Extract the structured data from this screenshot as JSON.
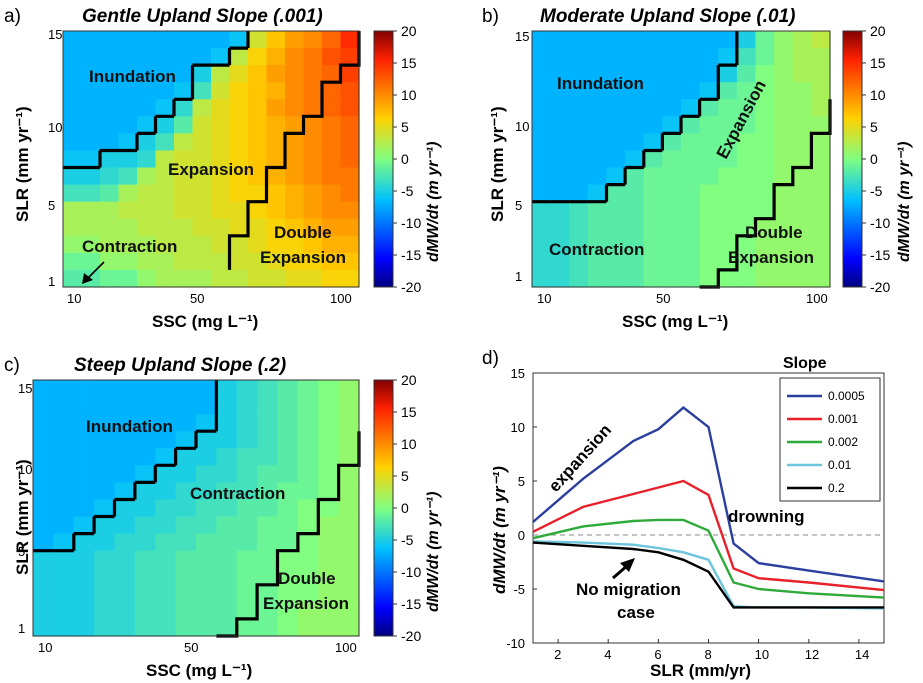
{
  "chart_data": [
    {
      "type": "heatmap",
      "panel_label": "a)",
      "title": "Gentle Upland Slope (.001)",
      "xlabel": "SSC (mg L⁻¹)",
      "ylabel": "SLR (mm yr⁻¹)",
      "xticks": [
        "10",
        "50",
        "100"
      ],
      "yticks": [
        "1",
        "5",
        "10",
        "15"
      ],
      "colorbar": {
        "label": "dMW/dt (m yr⁻¹)",
        "range": [
          -20,
          20
        ],
        "ticks": [
          "20",
          "15",
          "10",
          "5",
          "0",
          "-5",
          "-10",
          "-15",
          "-20"
        ]
      },
      "regions": [
        "Inundation",
        "Expansion",
        "Contraction",
        "Double Expansion"
      ],
      "values": [
        [
          -7,
          -7,
          -7,
          -7,
          -7,
          -7,
          -7,
          -7,
          -7,
          -6,
          4,
          7,
          9,
          10,
          12,
          15
        ],
        [
          -7,
          -7,
          -7,
          -7,
          -7,
          -7,
          -7,
          -7,
          -6,
          3,
          6,
          8,
          10,
          11,
          13,
          14
        ],
        [
          -7,
          -7,
          -7,
          -7,
          -7,
          -7,
          -7,
          -5,
          3,
          5,
          7,
          9,
          10,
          11,
          12,
          14
        ],
        [
          -7,
          -7,
          -7,
          -7,
          -7,
          -7,
          -6,
          -3,
          4,
          6,
          7,
          8,
          10,
          11,
          12,
          13
        ],
        [
          -7,
          -7,
          -7,
          -7,
          -7,
          -6,
          -4,
          3,
          5,
          6,
          7,
          9,
          10,
          11,
          12,
          13
        ],
        [
          -7,
          -7,
          -7,
          -7,
          -6,
          -5,
          -2,
          4,
          5,
          6,
          7,
          8,
          9,
          10,
          11,
          12
        ],
        [
          -7,
          -7,
          -7,
          -6,
          -5,
          -3,
          3,
          4,
          5,
          6,
          7,
          8,
          9,
          10,
          11,
          12
        ],
        [
          -6,
          -6,
          -5,
          -5,
          -4,
          3,
          4,
          4,
          5,
          6,
          7,
          8,
          9,
          10,
          11,
          12
        ],
        [
          -5,
          -5,
          -4,
          -3,
          2,
          3,
          4,
          4,
          5,
          6,
          7,
          8,
          9,
          10,
          11,
          11
        ],
        [
          -3,
          -3,
          -2,
          2,
          3,
          3,
          4,
          4,
          5,
          6,
          6,
          7,
          8,
          9,
          10,
          11
        ],
        [
          2,
          2,
          2,
          3,
          3,
          3,
          4,
          4,
          5,
          5,
          6,
          7,
          8,
          9,
          10,
          10
        ],
        [
          2,
          2,
          2,
          2,
          3,
          3,
          3,
          4,
          4,
          5,
          5,
          6,
          7,
          8,
          9,
          9
        ],
        [
          1,
          1,
          2,
          2,
          2,
          3,
          3,
          3,
          4,
          4,
          5,
          6,
          6,
          7,
          8,
          8
        ],
        [
          -1,
          -1,
          1,
          1,
          2,
          2,
          3,
          3,
          3,
          4,
          4,
          5,
          6,
          6,
          7,
          7
        ],
        [
          -2,
          -2,
          -1,
          -1,
          1,
          2,
          2,
          2,
          3,
          3,
          4,
          4,
          5,
          5,
          6,
          6
        ]
      ]
    },
    {
      "type": "heatmap",
      "panel_label": "b)",
      "title": "Moderate Upland Slope (.01)",
      "xlabel": "SSC (mg L⁻¹)",
      "ylabel": "SLR (mm yr⁻¹)",
      "xticks": [
        "10",
        "50",
        "100"
      ],
      "yticks": [
        "1",
        "5",
        "10",
        "15"
      ],
      "colorbar": {
        "label": "dMW/dt (m yr⁻¹)",
        "range": [
          -20,
          20
        ],
        "ticks": [
          "20",
          "15",
          "10",
          "5",
          "0",
          "-5",
          "-10",
          "-15",
          "-20"
        ]
      },
      "regions": [
        "Inundation",
        "Expansion",
        "Contraction",
        "Double Expansion"
      ],
      "values": [
        [
          -7,
          -7,
          -7,
          -7,
          -7,
          -7,
          -7,
          -7,
          -7,
          -7,
          -7,
          -5,
          -1,
          1,
          2,
          3
        ],
        [
          -7,
          -7,
          -7,
          -7,
          -7,
          -7,
          -7,
          -7,
          -7,
          -7,
          -6,
          -3,
          -1,
          1,
          2,
          2
        ],
        [
          -7,
          -7,
          -7,
          -7,
          -7,
          -7,
          -7,
          -7,
          -7,
          -7,
          -5,
          -2,
          0,
          1,
          2,
          2
        ],
        [
          -7,
          -7,
          -7,
          -7,
          -7,
          -7,
          -7,
          -7,
          -7,
          -6,
          -2,
          -1,
          0,
          1,
          1,
          2
        ],
        [
          -7,
          -7,
          -7,
          -7,
          -7,
          -7,
          -7,
          -7,
          -6,
          -2,
          -1,
          -1,
          0,
          1,
          1,
          2
        ],
        [
          -7,
          -7,
          -7,
          -7,
          -7,
          -7,
          -7,
          -6,
          -2,
          -1,
          -1,
          -1,
          0,
          1,
          1,
          1
        ],
        [
          -7,
          -7,
          -7,
          -7,
          -7,
          -7,
          -6,
          -2,
          -1,
          -1,
          -1,
          0,
          0,
          1,
          1,
          1
        ],
        [
          -7,
          -7,
          -7,
          -7,
          -7,
          -6,
          -2,
          -1,
          -1,
          -1,
          -1,
          0,
          0,
          1,
          1,
          1
        ],
        [
          -7,
          -7,
          -7,
          -7,
          -6,
          -2,
          -1,
          -1,
          -1,
          -1,
          0,
          0,
          0,
          1,
          1,
          1
        ],
        [
          -7,
          -7,
          -7,
          -6,
          -2,
          -2,
          -1,
          -1,
          -1,
          0,
          0,
          0,
          0,
          1,
          1,
          1
        ],
        [
          -4,
          -4,
          -3,
          -2,
          -2,
          -2,
          -1,
          -1,
          -1,
          0,
          0,
          0,
          0,
          1,
          1,
          1
        ],
        [
          -4,
          -4,
          -3,
          -2,
          -2,
          -2,
          -1,
          -1,
          -1,
          0,
          0,
          0,
          1,
          1,
          1,
          1
        ],
        [
          -4,
          -4,
          -3,
          -2,
          -2,
          -2,
          -1,
          -1,
          -1,
          0,
          0,
          0,
          1,
          1,
          1,
          1
        ],
        [
          -4,
          -4,
          -3,
          -2,
          -2,
          -2,
          -1,
          -1,
          -1,
          0,
          0,
          0,
          1,
          1,
          1,
          1
        ],
        [
          -4,
          -4,
          -3,
          -2,
          -2,
          -2,
          -1,
          -1,
          -1,
          0,
          0,
          0,
          1,
          1,
          1,
          1
        ]
      ]
    },
    {
      "type": "heatmap",
      "panel_label": "c)",
      "title": "Steep Upland Slope (.2)",
      "xlabel": "SSC (mg L⁻¹)",
      "ylabel": "SLR (mm yr⁻¹)",
      "xticks": [
        "10",
        "50",
        "100"
      ],
      "yticks": [
        "1",
        "5",
        "10",
        "15"
      ],
      "colorbar": {
        "label": "dMW/dt (m yr⁻¹)",
        "range": [
          -20,
          20
        ],
        "ticks": [
          "20",
          "15",
          "10",
          "5",
          "0",
          "-5",
          "-10",
          "-15",
          "-20"
        ]
      },
      "regions": [
        "Inundation",
        "Contraction",
        "Double Expansion"
      ],
      "values": [
        [
          -7,
          -7,
          -7,
          -7,
          -7,
          -7,
          -7,
          -7,
          -7,
          -5,
          -4,
          -3,
          -2,
          -1,
          0,
          1
        ],
        [
          -7,
          -7,
          -7,
          -7,
          -7,
          -7,
          -7,
          -7,
          -7,
          -5,
          -4,
          -3,
          -2,
          -1,
          0,
          1
        ],
        [
          -7,
          -7,
          -7,
          -7,
          -7,
          -7,
          -7,
          -7,
          -6,
          -5,
          -4,
          -3,
          -2,
          -1,
          0,
          1
        ],
        [
          -7,
          -7,
          -7,
          -7,
          -7,
          -7,
          -7,
          -6,
          -5,
          -5,
          -4,
          -3,
          -2,
          -1,
          0,
          1
        ],
        [
          -7,
          -7,
          -7,
          -7,
          -7,
          -7,
          -6,
          -5,
          -5,
          -4,
          -3,
          -3,
          -2,
          -1,
          0,
          1
        ],
        [
          -7,
          -7,
          -7,
          -7,
          -7,
          -6,
          -5,
          -5,
          -4,
          -4,
          -3,
          -2,
          -2,
          -1,
          0,
          1
        ],
        [
          -7,
          -7,
          -7,
          -7,
          -6,
          -5,
          -5,
          -4,
          -4,
          -3,
          -3,
          -2,
          -1,
          -1,
          0,
          1
        ],
        [
          -7,
          -7,
          -7,
          -6,
          -5,
          -5,
          -4,
          -4,
          -3,
          -3,
          -2,
          -2,
          -1,
          0,
          0,
          1
        ],
        [
          -7,
          -7,
          -6,
          -5,
          -5,
          -4,
          -4,
          -3,
          -3,
          -2,
          -2,
          -1,
          -1,
          0,
          1,
          1
        ],
        [
          -7,
          -6,
          -5,
          -5,
          -4,
          -4,
          -3,
          -3,
          -2,
          -2,
          -2,
          -1,
          -1,
          0,
          1,
          1
        ],
        [
          -5,
          -5,
          -5,
          -4,
          -4,
          -3,
          -3,
          -2,
          -2,
          -2,
          -1,
          -1,
          0,
          0,
          1,
          1
        ],
        [
          -5,
          -5,
          -5,
          -4,
          -4,
          -3,
          -3,
          -2,
          -2,
          -2,
          -1,
          -1,
          0,
          0,
          1,
          1
        ],
        [
          -5,
          -5,
          -5,
          -4,
          -4,
          -3,
          -3,
          -2,
          -2,
          -2,
          -1,
          -1,
          0,
          0,
          1,
          1
        ],
        [
          -5,
          -5,
          -5,
          -4,
          -4,
          -3,
          -3,
          -2,
          -2,
          -2,
          -1,
          -1,
          0,
          1,
          1,
          1
        ],
        [
          -5,
          -5,
          -5,
          -4,
          -4,
          -3,
          -3,
          -2,
          -2,
          -2,
          -1,
          -1,
          0,
          1,
          1,
          1
        ]
      ]
    },
    {
      "type": "line",
      "panel_label": "d)",
      "xlabel": "SLR (mm/yr)",
      "ylabel": "dMW/dt (m yr⁻¹)",
      "xlim": [
        1,
        15
      ],
      "ylim": [
        -10,
        15
      ],
      "xticks": [
        2,
        4,
        6,
        8,
        10,
        12,
        14
      ],
      "yticks": [
        -10,
        -5,
        0,
        5,
        10,
        15
      ],
      "legend_title": "Slope",
      "legend_position": "top-right",
      "annotations": [
        "expansion",
        "drowning",
        "No migration case"
      ],
      "zero_line": "dashed",
      "series": [
        {
          "name": "0.0005",
          "color": "#2b3f9e",
          "x": [
            1,
            3,
            5,
            6,
            7,
            8,
            9,
            10,
            12,
            15
          ],
          "y": [
            1.2,
            5.2,
            8.7,
            9.8,
            11.8,
            10,
            -0.8,
            -2.6,
            -3.3,
            -4.3
          ]
        },
        {
          "name": "0.001",
          "color": "#e8202a",
          "x": [
            1,
            3,
            5,
            6,
            7,
            8,
            9,
            10,
            12,
            15
          ],
          "y": [
            0.3,
            2.6,
            3.8,
            4.4,
            5,
            3.7,
            -3.1,
            -4,
            -4.4,
            -5.1
          ]
        },
        {
          "name": "0.002",
          "color": "#2eaa3a",
          "x": [
            1,
            3,
            5,
            6,
            7,
            8,
            9,
            10,
            12,
            15
          ],
          "y": [
            -0.3,
            0.8,
            1.3,
            1.4,
            1.4,
            0.4,
            -4.4,
            -5,
            -5.4,
            -5.8
          ]
        },
        {
          "name": "0.01",
          "color": "#6cc5dc",
          "x": [
            1,
            3,
            5,
            6,
            7,
            8,
            9,
            10,
            12,
            15
          ],
          "y": [
            -0.6,
            -0.7,
            -0.9,
            -1.2,
            -1.6,
            -2.3,
            -6.6,
            -6.7,
            -6.7,
            -6.8
          ]
        },
        {
          "name": "0.2",
          "color": "#000000",
          "x": [
            1,
            3,
            5,
            6,
            7,
            8,
            9,
            10,
            12,
            15
          ],
          "y": [
            -0.7,
            -1,
            -1.3,
            -1.6,
            -2.3,
            -3.4,
            -6.7,
            -6.7,
            -6.7,
            -6.7
          ]
        }
      ]
    }
  ]
}
